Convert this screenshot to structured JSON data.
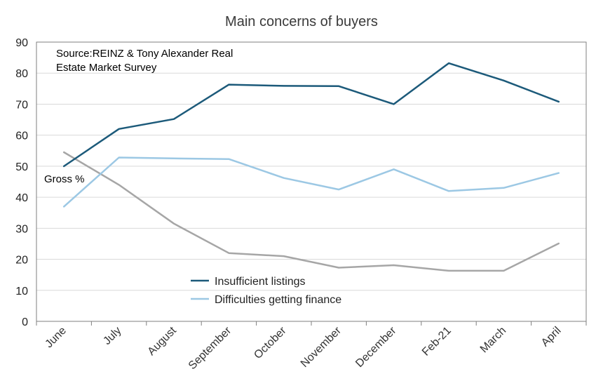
{
  "chart_data": {
    "type": "line",
    "title": "Main concerns of buyers",
    "ylabel": "Gross %",
    "xlabel": "",
    "ylim": [
      0,
      90
    ],
    "yticks": [
      0,
      10,
      20,
      30,
      40,
      50,
      60,
      70,
      80,
      90
    ],
    "categories": [
      "June",
      "July",
      "August",
      "September",
      "October",
      "November",
      "December",
      "Feb-21",
      "March",
      "April"
    ],
    "source": "Source:REINZ & Tony Alexander Real Estate Market Survey",
    "source_lines": [
      "Source:REINZ & Tony Alexander Real",
      "Estate Market Survey"
    ],
    "grid": true,
    "legend_position": "bottom-left",
    "series": [
      {
        "name": "Insufficient listings",
        "color": "#1c5a7a",
        "in_legend": true,
        "values": [
          50,
          62,
          65.2,
          76.3,
          75.9,
          75.8,
          70,
          83.2,
          77.6,
          70.8
        ]
      },
      {
        "name": "Difficulties getting finance",
        "color": "#9cc8e4",
        "in_legend": true,
        "values": [
          37,
          52.8,
          52.5,
          52.3,
          46.2,
          42.5,
          49,
          42,
          43,
          47.8
        ]
      },
      {
        "name": "",
        "color": "#a6a6a6",
        "in_legend": false,
        "values": [
          54.5,
          44,
          31.5,
          22,
          21,
          17.3,
          18.1,
          16.3,
          16.3,
          25.1
        ]
      }
    ]
  }
}
